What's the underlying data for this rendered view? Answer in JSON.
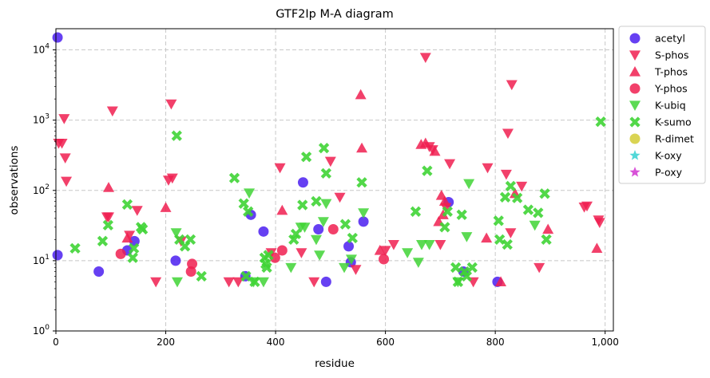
{
  "chart_data": {
    "type": "scatter",
    "title": "GTF2Ip M-A diagram",
    "xlabel": "residue",
    "ylabel": "observations",
    "xlim": [
      0,
      1015
    ],
    "ylim": [
      1,
      20000
    ],
    "yscale": "log",
    "grid": true,
    "legend_position": "right-outside-top",
    "x_ticks": [
      {
        "value": 0,
        "label": "0"
      },
      {
        "value": 200,
        "label": "200"
      },
      {
        "value": 400,
        "label": "400"
      },
      {
        "value": 600,
        "label": "600"
      },
      {
        "value": 800,
        "label": "800"
      },
      {
        "value": 1000,
        "label": "1,000"
      }
    ],
    "y_ticks": [
      {
        "value": 1,
        "base": "10",
        "exp": "0"
      },
      {
        "value": 10,
        "base": "10",
        "exp": "1"
      },
      {
        "value": 100,
        "base": "10",
        "exp": "2"
      },
      {
        "value": 1000,
        "base": "10",
        "exp": "3"
      },
      {
        "value": 10000,
        "base": "10",
        "exp": "4"
      }
    ],
    "series": [
      {
        "name": "acetyl",
        "marker": "circle",
        "color": "#4b1ef0",
        "points": [
          [
            3,
            15000
          ],
          [
            3,
            12
          ],
          [
            78,
            7
          ],
          [
            130,
            14
          ],
          [
            143,
            19
          ],
          [
            218,
            10
          ],
          [
            345,
            6
          ],
          [
            355,
            45
          ],
          [
            378,
            26
          ],
          [
            450,
            130
          ],
          [
            478,
            28
          ],
          [
            492,
            5
          ],
          [
            533,
            16
          ],
          [
            537,
            9.5
          ],
          [
            560,
            36
          ],
          [
            715,
            68
          ],
          [
            742,
            7
          ],
          [
            804,
            5
          ]
        ]
      },
      {
        "name": "S-phos",
        "marker": "triangle-down",
        "color": "#f01e50",
        "points": [
          [
            5,
            470
          ],
          [
            11,
            470
          ],
          [
            15,
            1050
          ],
          [
            17,
            290
          ],
          [
            19,
            135
          ],
          [
            93,
            42
          ],
          [
            96,
            42
          ],
          [
            103,
            1350
          ],
          [
            134,
            23
          ],
          [
            148,
            52
          ],
          [
            182,
            5
          ],
          [
            205,
            140
          ],
          [
            210,
            1700
          ],
          [
            212,
            150
          ],
          [
            228,
            19
          ],
          [
            315,
            5
          ],
          [
            332,
            5
          ],
          [
            392,
            13
          ],
          [
            408,
            210
          ],
          [
            447,
            13
          ],
          [
            470,
            5
          ],
          [
            500,
            260
          ],
          [
            517,
            80
          ],
          [
            546,
            7.5
          ],
          [
            600,
            14
          ],
          [
            615,
            17
          ],
          [
            673,
            7800
          ],
          [
            680,
            420
          ],
          [
            686,
            380
          ],
          [
            700,
            17
          ],
          [
            710,
            57
          ],
          [
            717,
            240
          ],
          [
            760,
            5
          ],
          [
            786,
            210
          ],
          [
            820,
            170
          ],
          [
            823,
            650
          ],
          [
            828,
            25
          ],
          [
            830,
            3200
          ],
          [
            848,
            115
          ],
          [
            880,
            8
          ],
          [
            962,
            58
          ],
          [
            967,
            60
          ],
          [
            988,
            38
          ],
          [
            990,
            35
          ]
        ]
      },
      {
        "name": "T-phos",
        "marker": "triangle-up",
        "color": "#f01e50",
        "points": [
          [
            96,
            110
          ],
          [
            130,
            21
          ],
          [
            200,
            57
          ],
          [
            412,
            52
          ],
          [
            555,
            2300
          ],
          [
            557,
            400
          ],
          [
            590,
            14
          ],
          [
            665,
            450
          ],
          [
            673,
            470
          ],
          [
            690,
            360
          ],
          [
            697,
            36
          ],
          [
            702,
            85
          ],
          [
            705,
            45
          ],
          [
            708,
            70
          ],
          [
            784,
            21
          ],
          [
            810,
            5
          ],
          [
            836,
            90
          ],
          [
            896,
            28
          ],
          [
            985,
            15
          ]
        ]
      },
      {
        "name": "Y-phos",
        "marker": "circle",
        "color": "#f01e50",
        "points": [
          [
            118,
            12.5
          ],
          [
            246,
            7
          ],
          [
            248,
            9
          ],
          [
            399,
            11
          ],
          [
            412,
            14
          ],
          [
            505,
            28
          ],
          [
            597,
            10.5
          ]
        ]
      },
      {
        "name": "K-ubiq",
        "marker": "triangle-down",
        "color": "#3fd435",
        "points": [
          [
            219,
            25
          ],
          [
            221,
            5
          ],
          [
            352,
            92
          ],
          [
            360,
            5
          ],
          [
            378,
            5
          ],
          [
            428,
            8
          ],
          [
            446,
            30
          ],
          [
            453,
            30
          ],
          [
            474,
            20
          ],
          [
            480,
            12
          ],
          [
            487,
            36
          ],
          [
            492,
            65
          ],
          [
            525,
            8
          ],
          [
            538,
            10.5
          ],
          [
            560,
            48
          ],
          [
            640,
            13
          ],
          [
            660,
            9.5
          ],
          [
            666,
            17
          ],
          [
            680,
            17
          ],
          [
            732,
            5
          ],
          [
            748,
            22
          ],
          [
            752,
            125
          ],
          [
            872,
            32
          ]
        ]
      },
      {
        "name": "K-sumo",
        "marker": "x",
        "color": "#3fd435",
        "points": [
          [
            35,
            15
          ],
          [
            85,
            19
          ],
          [
            95,
            32
          ],
          [
            130,
            63
          ],
          [
            140,
            11
          ],
          [
            142,
            15
          ],
          [
            155,
            30
          ],
          [
            158,
            28
          ],
          [
            220,
            600
          ],
          [
            225,
            20
          ],
          [
            235,
            16
          ],
          [
            245,
            20
          ],
          [
            265,
            6
          ],
          [
            325,
            150
          ],
          [
            342,
            65
          ],
          [
            346,
            6
          ],
          [
            350,
            50
          ],
          [
            362,
            5
          ],
          [
            380,
            11
          ],
          [
            382,
            9
          ],
          [
            384,
            8
          ],
          [
            387,
            12
          ],
          [
            433,
            20
          ],
          [
            437,
            24
          ],
          [
            449,
            62
          ],
          [
            456,
            300
          ],
          [
            474,
            70
          ],
          [
            488,
            400
          ],
          [
            492,
            175
          ],
          [
            527,
            33
          ],
          [
            540,
            21
          ],
          [
            557,
            130
          ],
          [
            655,
            50
          ],
          [
            676,
            190
          ],
          [
            708,
            30
          ],
          [
            713,
            50
          ],
          [
            728,
            8
          ],
          [
            732,
            5
          ],
          [
            739,
            45
          ],
          [
            744,
            7
          ],
          [
            748,
            6
          ],
          [
            758,
            8
          ],
          [
            806,
            37
          ],
          [
            808,
            20
          ],
          [
            818,
            80
          ],
          [
            822,
            17
          ],
          [
            828,
            115
          ],
          [
            840,
            78
          ],
          [
            860,
            53
          ],
          [
            878,
            48
          ],
          [
            890,
            90
          ],
          [
            893,
            20
          ],
          [
            992,
            950
          ]
        ]
      },
      {
        "name": "R-dimet",
        "marker": "circle",
        "color": "#d4cc35",
        "points": []
      },
      {
        "name": "K-oxy",
        "marker": "star",
        "color": "#3fd4d4",
        "points": []
      },
      {
        "name": "P-oxy",
        "marker": "star",
        "color": "#d43fd4",
        "points": []
      }
    ]
  }
}
